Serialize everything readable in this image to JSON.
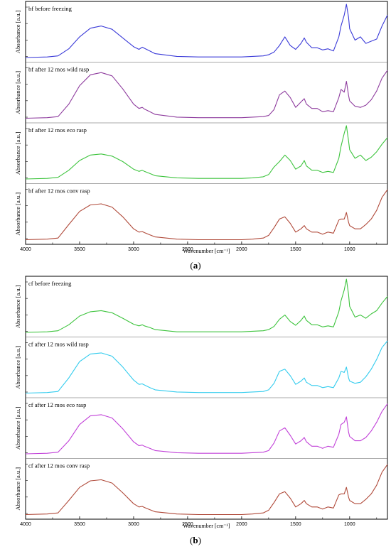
{
  "figure_a": {
    "caption_letter": "a",
    "xlabel": "Wavenumber [cm⁻¹]",
    "xticks": [
      "4000",
      "3500",
      "3000",
      "2500",
      "2000",
      "1500",
      "1000"
    ]
  },
  "figure_b": {
    "caption_letter": "b",
    "xlabel": "Wavenumber [cm⁻¹]",
    "xticks": [
      "4000",
      "3500",
      "3000",
      "2500",
      "2000",
      "1500",
      "1000"
    ]
  },
  "chart_data": [
    {
      "type": "line",
      "panel": "a",
      "xlabel": "Wavenumber [cm⁻¹]",
      "ylabel": "Absorbance [a.u.]",
      "xlim": [
        4000,
        650
      ],
      "x_reversed": true,
      "grid": false,
      "x": [
        4000,
        3800,
        3700,
        3600,
        3500,
        3400,
        3300,
        3200,
        3100,
        3000,
        2950,
        2920,
        2900,
        2850,
        2800,
        2600,
        2400,
        2200,
        2100,
        2000,
        1900,
        1800,
        1750,
        1700,
        1650,
        1600,
        1550,
        1500,
        1450,
        1420,
        1400,
        1350,
        1300,
        1250,
        1200,
        1150,
        1100,
        1080,
        1050,
        1030,
        1010,
        1000,
        950,
        900,
        850,
        800,
        750,
        700,
        650
      ],
      "series": [
        {
          "name": "bf before freezing",
          "color": "#3a3ad8",
          "values": [
            0.02,
            0.03,
            0.05,
            0.18,
            0.4,
            0.56,
            0.6,
            0.54,
            0.38,
            0.22,
            0.17,
            0.21,
            0.19,
            0.14,
            0.09,
            0.04,
            0.03,
            0.03,
            0.03,
            0.03,
            0.04,
            0.05,
            0.07,
            0.12,
            0.24,
            0.4,
            0.24,
            0.17,
            0.28,
            0.38,
            0.3,
            0.2,
            0.2,
            0.16,
            0.18,
            0.14,
            0.4,
            0.6,
            0.8,
            1.0,
            0.76,
            0.55,
            0.34,
            0.4,
            0.28,
            0.32,
            0.36,
            0.6,
            0.8
          ]
        },
        {
          "name": "bf after 12 mos wild rasp",
          "color": "#8e3c9e",
          "values": [
            0.02,
            0.03,
            0.05,
            0.28,
            0.62,
            0.82,
            0.86,
            0.8,
            0.56,
            0.28,
            0.2,
            0.22,
            0.19,
            0.14,
            0.09,
            0.04,
            0.03,
            0.03,
            0.03,
            0.03,
            0.04,
            0.05,
            0.07,
            0.18,
            0.45,
            0.52,
            0.4,
            0.22,
            0.32,
            0.38,
            0.28,
            0.2,
            0.2,
            0.14,
            0.16,
            0.14,
            0.4,
            0.55,
            0.5,
            0.7,
            0.44,
            0.34,
            0.24,
            0.22,
            0.26,
            0.36,
            0.52,
            0.76,
            0.9
          ]
        },
        {
          "name": "bf after 12 mos eco rasp",
          "color": "#3ec43e",
          "values": [
            0.02,
            0.03,
            0.05,
            0.18,
            0.36,
            0.46,
            0.48,
            0.44,
            0.34,
            0.2,
            0.16,
            0.18,
            0.16,
            0.12,
            0.08,
            0.04,
            0.03,
            0.03,
            0.03,
            0.03,
            0.04,
            0.06,
            0.1,
            0.24,
            0.34,
            0.46,
            0.36,
            0.2,
            0.26,
            0.36,
            0.26,
            0.18,
            0.18,
            0.14,
            0.16,
            0.14,
            0.4,
            0.62,
            0.86,
            1.0,
            0.72,
            0.56,
            0.4,
            0.46,
            0.36,
            0.42,
            0.52,
            0.66,
            0.78
          ]
        },
        {
          "name": "bf after 12 mos conv rasp",
          "color": "#b04a3a",
          "values": [
            0.02,
            0.03,
            0.05,
            0.3,
            0.54,
            0.66,
            0.68,
            0.62,
            0.44,
            0.22,
            0.16,
            0.17,
            0.15,
            0.11,
            0.07,
            0.03,
            0.02,
            0.02,
            0.02,
            0.02,
            0.03,
            0.05,
            0.1,
            0.24,
            0.4,
            0.44,
            0.32,
            0.16,
            0.22,
            0.28,
            0.22,
            0.16,
            0.16,
            0.12,
            0.16,
            0.14,
            0.38,
            0.4,
            0.4,
            0.52,
            0.34,
            0.28,
            0.22,
            0.22,
            0.3,
            0.4,
            0.56,
            0.8,
            0.94
          ]
        }
      ]
    },
    {
      "type": "line",
      "panel": "b",
      "xlabel": "Wavenumber [cm⁻¹]",
      "ylabel": "Absorbance [a.u.]",
      "xlim": [
        4000,
        650
      ],
      "x_reversed": true,
      "grid": false,
      "x": [
        4000,
        3800,
        3700,
        3600,
        3500,
        3400,
        3300,
        3200,
        3100,
        3000,
        2950,
        2920,
        2900,
        2850,
        2800,
        2600,
        2400,
        2200,
        2100,
        2000,
        1900,
        1800,
        1750,
        1700,
        1650,
        1600,
        1550,
        1500,
        1450,
        1420,
        1400,
        1350,
        1300,
        1250,
        1200,
        1150,
        1100,
        1080,
        1050,
        1030,
        1010,
        1000,
        950,
        900,
        850,
        800,
        750,
        700,
        650
      ],
      "series": [
        {
          "name": "cf before freezing",
          "color": "#3ec43e",
          "values": [
            0.02,
            0.03,
            0.05,
            0.16,
            0.32,
            0.4,
            0.42,
            0.38,
            0.28,
            0.17,
            0.14,
            0.16,
            0.14,
            0.11,
            0.07,
            0.03,
            0.03,
            0.03,
            0.03,
            0.03,
            0.04,
            0.05,
            0.07,
            0.13,
            0.26,
            0.34,
            0.22,
            0.15,
            0.24,
            0.32,
            0.24,
            0.16,
            0.16,
            0.12,
            0.14,
            0.12,
            0.4,
            0.6,
            0.8,
            1.0,
            0.72,
            0.5,
            0.3,
            0.34,
            0.28,
            0.36,
            0.42,
            0.56,
            0.68
          ]
        },
        {
          "name": "cf after 12 mos wild rasp",
          "color": "#33ccee",
          "values": [
            0.02,
            0.03,
            0.05,
            0.3,
            0.6,
            0.74,
            0.76,
            0.7,
            0.5,
            0.26,
            0.18,
            0.19,
            0.17,
            0.12,
            0.08,
            0.04,
            0.03,
            0.03,
            0.03,
            0.03,
            0.04,
            0.05,
            0.08,
            0.2,
            0.42,
            0.46,
            0.34,
            0.18,
            0.24,
            0.3,
            0.22,
            0.16,
            0.16,
            0.12,
            0.14,
            0.12,
            0.3,
            0.42,
            0.4,
            0.5,
            0.3,
            0.24,
            0.2,
            0.22,
            0.32,
            0.46,
            0.64,
            0.86,
            0.98
          ]
        },
        {
          "name": "cf after 12 mos eco rasp",
          "color": "#c140d8",
          "values": [
            0.02,
            0.03,
            0.05,
            0.26,
            0.56,
            0.72,
            0.74,
            0.68,
            0.48,
            0.24,
            0.17,
            0.18,
            0.16,
            0.12,
            0.08,
            0.04,
            0.03,
            0.03,
            0.03,
            0.03,
            0.04,
            0.05,
            0.08,
            0.22,
            0.44,
            0.5,
            0.36,
            0.2,
            0.26,
            0.32,
            0.24,
            0.16,
            0.16,
            0.12,
            0.16,
            0.14,
            0.38,
            0.56,
            0.6,
            0.7,
            0.42,
            0.34,
            0.26,
            0.26,
            0.32,
            0.44,
            0.6,
            0.8,
            0.94
          ]
        },
        {
          "name": "cf after 12 mos conv rasp",
          "color": "#b04a3a",
          "values": [
            0.02,
            0.03,
            0.05,
            0.28,
            0.52,
            0.64,
            0.66,
            0.6,
            0.42,
            0.22,
            0.16,
            0.17,
            0.15,
            0.11,
            0.07,
            0.03,
            0.02,
            0.02,
            0.02,
            0.02,
            0.03,
            0.05,
            0.1,
            0.24,
            0.4,
            0.44,
            0.32,
            0.16,
            0.22,
            0.28,
            0.22,
            0.16,
            0.16,
            0.12,
            0.16,
            0.14,
            0.38,
            0.4,
            0.4,
            0.52,
            0.34,
            0.28,
            0.22,
            0.22,
            0.3,
            0.4,
            0.56,
            0.8,
            0.94
          ]
        }
      ]
    }
  ]
}
